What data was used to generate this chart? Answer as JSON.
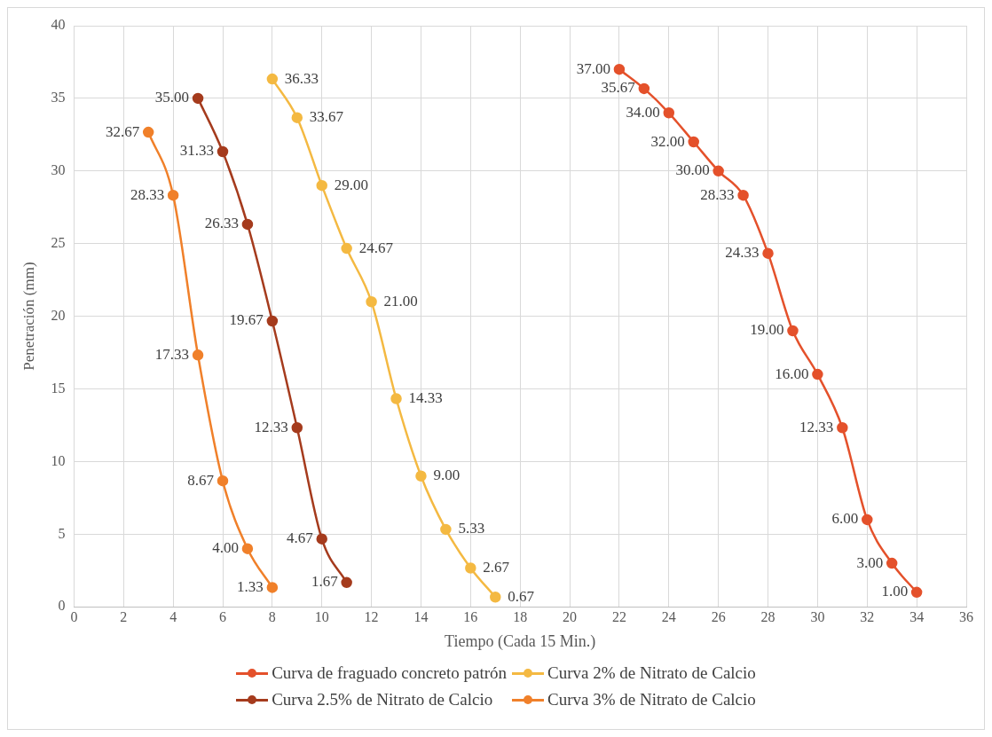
{
  "chart_data": {
    "type": "line",
    "xlabel": "Tiempo (Cada 15 Min.)",
    "ylabel": "Penetración (mm)",
    "xlim": [
      0,
      36
    ],
    "xticks": [
      0,
      2,
      4,
      6,
      8,
      10,
      12,
      14,
      16,
      18,
      20,
      22,
      24,
      26,
      28,
      30,
      32,
      34,
      36
    ],
    "ylim": [
      0,
      40
    ],
    "yticks": [
      0,
      5,
      10,
      15,
      20,
      25,
      30,
      35,
      40
    ],
    "grid": true,
    "legend": "bottom",
    "marker": "circle",
    "series": [
      {
        "name": "Curva de fraguado concreto patrón",
        "color": "#e4512b",
        "x": [
          22,
          23,
          24,
          25,
          26,
          27,
          28,
          29,
          30,
          31,
          32,
          33,
          34
        ],
        "values": [
          37,
          35.67,
          34,
          32,
          30,
          28.33,
          24.33,
          19,
          16,
          12.33,
          6,
          3,
          1
        ],
        "value_labels": [
          "37.00",
          "35.67",
          "34.00",
          "32.00",
          "30.00",
          "28.33",
          "24.33",
          "19.00",
          "16.00",
          "12.33",
          "6.00",
          "3.00",
          "1.00"
        ]
      },
      {
        "name": "Curva 2% de Nitrato de Calcio",
        "color": "#f4b942",
        "x": [
          8,
          9,
          10,
          11,
          12,
          13,
          14,
          15,
          16,
          17
        ],
        "values": [
          36.33,
          33.67,
          29,
          24.67,
          21,
          14.33,
          9,
          5.33,
          2.67,
          0.67
        ],
        "value_labels": [
          "36.33",
          "33.67",
          "29.00",
          "24.67",
          "21.00",
          "14.33",
          "9.00",
          "5.33",
          "2.67",
          "0.67"
        ]
      },
      {
        "name": "Curva 2.5% de Nitrato de Calcio",
        "color": "#a53b1d",
        "x": [
          5,
          6,
          7,
          8,
          9,
          10,
          11
        ],
        "values": [
          35,
          31.33,
          26.33,
          19.67,
          12.33,
          4.67,
          1.67
        ],
        "value_labels": [
          "35.00",
          "31.33",
          "26.33",
          "19.67",
          "12.33",
          "4.67",
          "1.67"
        ]
      },
      {
        "name": "Curva 3% de Nitrato de Calcio",
        "color": "#f0802a",
        "x": [
          3,
          4,
          5,
          6,
          7,
          8
        ],
        "values": [
          32.67,
          28.33,
          17.33,
          8.67,
          4,
          1.33
        ],
        "value_labels": [
          "32.67",
          "28.33",
          "17.33",
          "8.67",
          "4.00",
          "1.33"
        ]
      }
    ]
  }
}
